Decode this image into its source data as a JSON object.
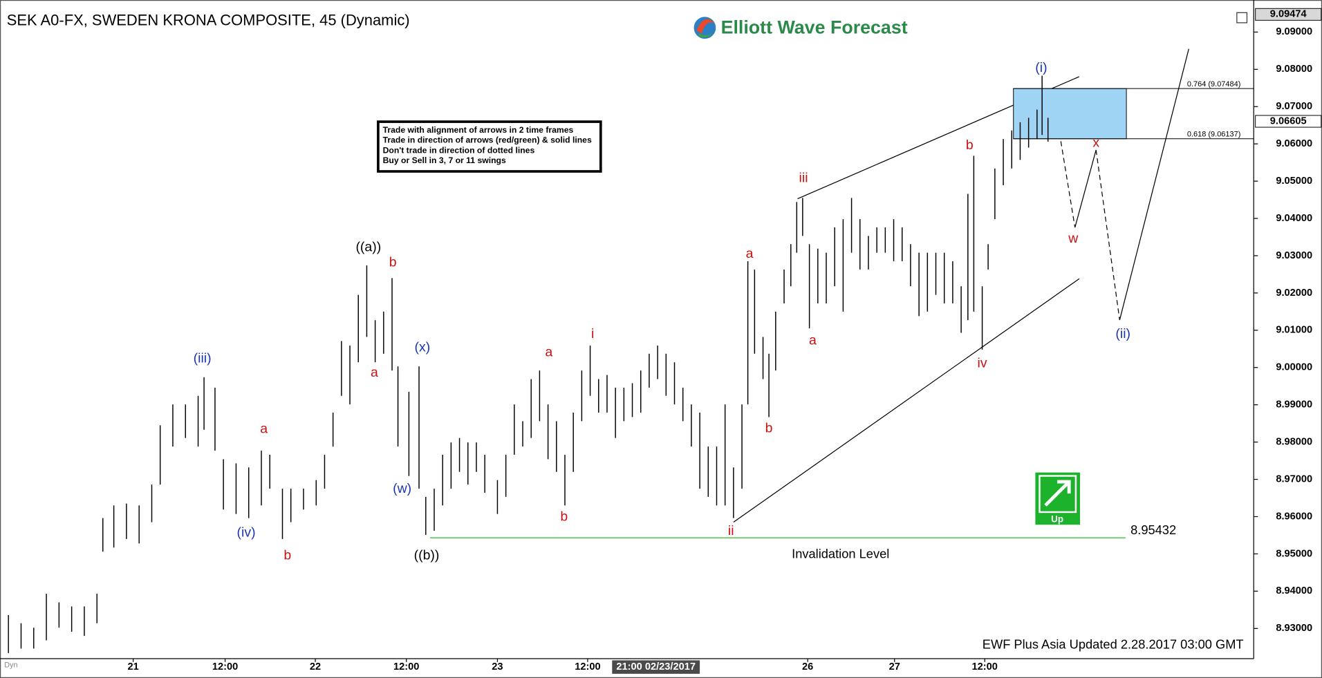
{
  "chart_data": {
    "type": "ohlc",
    "title": "SEK A0-FX, SWEDEN KRONA COMPOSITE, 45 (Dynamic)",
    "brand": "Elliott Wave Forecast",
    "footer": "EWF Plus Asia Updated 2.28.2017 03:00 GMT",
    "corner_label": "Dyn",
    "notes": [
      "Trade with alignment of arrows in 2 time frames",
      "Trade in direction of arrows (red/green) & solid lines",
      "Don't trade in direction of dotted lines",
      "Buy or Sell in 3, 7 or 11 swings"
    ],
    "signal": "Up",
    "color": "#000000",
    "x": [
      10,
      25,
      40,
      55,
      70,
      85,
      100,
      115,
      122,
      135,
      150,
      165,
      180,
      190,
      205,
      220,
      235,
      242,
      255,
      265,
      280,
      295,
      310,
      320,
      335,
      345,
      360,
      375,
      385,
      395,
      405,
      415,
      425,
      435,
      445,
      455,
      465,
      472,
      485,
      497,
      505,
      515,
      525,
      535,
      545,
      555,
      565,
      575,
      590,
      600,
      610,
      620,
      630,
      640,
      650,
      660,
      670,
      680,
      690,
      700,
      710,
      720,
      730,
      740,
      750,
      760,
      770,
      780,
      790,
      800,
      810,
      820,
      830,
      840,
      850,
      860,
      870,
      880,
      887,
      895,
      905,
      912,
      920,
      930,
      938,
      945,
      952,
      960,
      970,
      980,
      990,
      1000,
      1010,
      1020,
      1030,
      1040,
      1050,
      1060,
      1070,
      1080,
      1090,
      1100,
      1110,
      1120,
      1130,
      1140,
      1148,
      1155,
      1165,
      1172,
      1180,
      1190,
      1200,
      1210,
      1220,
      1230,
      1236,
      1243
    ],
    "high": [
      8.9336,
      8.9314,
      8.9302,
      8.9393,
      8.937,
      8.9359,
      8.9359,
      8.9393,
      8.9596,
      8.963,
      8.9635,
      8.963,
      8.9686,
      8.9845,
      8.9901,
      8.9901,
      8.9924,
      8.9974,
      8.9946,
      8.9754,
      8.9743,
      8.9732,
      8.9777,
      8.9766,
      8.9675,
      8.9675,
      8.9675,
      8.9698,
      8.9766,
      8.9879,
      9.0071,
      9.0059,
      9.0195,
      9.0274,
      9.0127,
      9.015,
      9.024,
      9.0003,
      8.9935,
      9.0003,
      8.9653,
      8.9675,
      8.9766,
      8.9799,
      8.9811,
      8.9799,
      8.9799,
      8.9766,
      8.9698,
      8.9766,
      8.9901,
      8.9856,
      8.9969,
      8.9992,
      8.9901,
      8.9856,
      8.9766,
      8.9879,
      8.9992,
      9.0059,
      8.9969,
      8.998,
      8.9946,
      8.9946,
      8.9958,
      8.9992,
      9.0037,
      9.0059,
      9.0037,
      9.0014,
      8.9946,
      8.9901,
      8.9879,
      8.9788,
      8.9788,
      8.9901,
      8.9732,
      8.9901,
      9.0285,
      9.0263,
      9.0082,
      9.0037,
      9.015,
      9.0263,
      9.0331,
      9.0444,
      9.0455,
      9.0331,
      9.0319,
      9.0308,
      9.0376,
      9.0398,
      9.0455,
      9.0398,
      9.0353,
      9.0376,
      9.0376,
      9.0398,
      9.0376,
      9.0331,
      9.0308,
      9.0308,
      9.0308,
      9.0308,
      9.0285,
      9.0218,
      9.0466,
      9.0568,
      9.0218,
      9.0331,
      9.0534,
      9.0613,
      9.0636,
      9.0658,
      9.067,
      9.0692,
      9.0783,
      9.067
    ],
    "low": [
      8.9234,
      8.9246,
      8.9246,
      8.9268,
      8.9302,
      8.9291,
      8.928,
      8.9314,
      8.9506,
      8.9517,
      8.954,
      8.9528,
      8.9585,
      8.9686,
      8.9788,
      8.9811,
      8.9788,
      8.9833,
      8.9777,
      8.9619,
      8.9607,
      8.9596,
      8.963,
      8.9675,
      8.954,
      8.9585,
      8.9619,
      8.963,
      8.9675,
      8.9788,
      8.9924,
      8.9901,
      9.0014,
      9.0082,
      9.0014,
      9.0037,
      8.9992,
      8.9788,
      8.9709,
      8.9675,
      8.9551,
      8.9562,
      8.963,
      8.9675,
      8.972,
      8.9686,
      8.972,
      8.9664,
      8.9607,
      8.9653,
      8.9766,
      8.9788,
      8.9811,
      8.9856,
      8.9754,
      8.972,
      8.963,
      8.972,
      8.9856,
      8.9924,
      8.9879,
      8.9879,
      8.9811,
      8.9856,
      8.9867,
      8.9879,
      8.9946,
      8.9969,
      8.9924,
      8.9901,
      8.9856,
      8.9788,
      8.9675,
      8.9653,
      8.963,
      8.963,
      8.9596,
      8.9675,
      8.9901,
      9.0037,
      8.9969,
      8.9867,
      8.9992,
      9.0172,
      9.0218,
      9.0308,
      9.0353,
      9.0105,
      9.0172,
      9.0172,
      9.0218,
      9.015,
      9.0308,
      9.0263,
      9.0263,
      9.0308,
      9.0308,
      9.0285,
      9.0285,
      9.0218,
      9.0138,
      9.015,
      9.0195,
      9.0172,
      9.0172,
      9.0093,
      9.0127,
      9.015,
      9.0048,
      9.0263,
      9.0398,
      9.0489,
      9.0534,
      9.0557,
      9.059,
      9.0613,
      9.0624,
      9.0606
    ],
    "xlim": [
      0,
      1487
    ],
    "xticks": [
      {
        "value": 158,
        "label": "21"
      },
      {
        "value": 267,
        "label": "12:00"
      },
      {
        "value": 374,
        "label": "22"
      },
      {
        "value": 482,
        "label": "12:00"
      },
      {
        "value": 590,
        "label": "23"
      },
      {
        "value": 697,
        "label": "12:00"
      },
      {
        "value": 958,
        "label": "26"
      },
      {
        "value": 1061,
        "label": "27"
      },
      {
        "value": 1168,
        "label": "12:00"
      }
    ],
    "crosshair": {
      "value": 778,
      "label": "21:00 02/23/2017"
    },
    "ylim": [
      8.9219,
      9.0986
    ],
    "yticks": [
      {
        "value": 8.93,
        "label": "8.93000"
      },
      {
        "value": 8.94,
        "label": "8.94000"
      },
      {
        "value": 8.95,
        "label": "8.95000"
      },
      {
        "value": 8.96,
        "label": "8.96000"
      },
      {
        "value": 8.97,
        "label": "8.97000"
      },
      {
        "value": 8.98,
        "label": "8.98000"
      },
      {
        "value": 8.99,
        "label": "8.99000"
      },
      {
        "value": 9.0,
        "label": "9.00000"
      },
      {
        "value": 9.01,
        "label": "9.01000"
      },
      {
        "value": 9.02,
        "label": "9.02000"
      },
      {
        "value": 9.03,
        "label": "9.03000"
      },
      {
        "value": 9.04,
        "label": "9.04000"
      },
      {
        "value": 9.05,
        "label": "9.05000"
      },
      {
        "value": 9.06,
        "label": "9.06000"
      },
      {
        "value": 9.07,
        "label": "9.07000"
      },
      {
        "value": 9.08,
        "label": "9.08000"
      },
      {
        "value": 9.09,
        "label": "9.09000"
      }
    ],
    "price_markers": [
      {
        "value": 9.09474,
        "color": "#d8d8d8"
      },
      {
        "value": 9.06605,
        "color": "#ffffff"
      }
    ],
    "fib_levels": [
      {
        "value": 9.07484,
        "label": "0.764 (9.07484)"
      },
      {
        "value": 9.06137,
        "label": "0.618 (9.06137)"
      }
    ],
    "fib_color": "#9fd4f5",
    "invalidation": {
      "value": 8.95432,
      "label": "Invalidation Level",
      "color": "#22c022"
    },
    "annotations": [
      {
        "text": "(iii)",
        "color": "#1a35b5"
      },
      {
        "text": "(iv)",
        "color": "#1a35b5"
      },
      {
        "text": "a",
        "color": "#cc1010"
      },
      {
        "text": "b",
        "color": "#cc1010"
      },
      {
        "text": "((a))",
        "color": "#000000"
      },
      {
        "text": "b",
        "color": "#cc1010"
      },
      {
        "text": "a",
        "color": "#cc1010"
      },
      {
        "text": "(x)",
        "color": "#1a35b5"
      },
      {
        "text": "(w)",
        "color": "#1a35b5"
      },
      {
        "text": "((b))",
        "color": "#000000"
      },
      {
        "text": "a",
        "color": "#cc1010"
      },
      {
        "text": "i",
        "color": "#cc1010"
      },
      {
        "text": "b",
        "color": "#cc1010"
      },
      {
        "text": "ii",
        "color": "#cc1010"
      },
      {
        "text": "a",
        "color": "#cc1010"
      },
      {
        "text": "b",
        "color": "#cc1010"
      },
      {
        "text": "iii",
        "color": "#cc1010"
      },
      {
        "text": "a",
        "color": "#cc1010"
      },
      {
        "text": "b",
        "color": "#cc1010"
      },
      {
        "text": "iv",
        "color": "#cc1010"
      },
      {
        "text": "(i)",
        "color": "#1a35b5"
      },
      {
        "text": "x",
        "color": "#cc1010"
      },
      {
        "text": "w",
        "color": "#cc1010"
      },
      {
        "text": "(ii)",
        "color": "#1a35b5"
      }
    ]
  }
}
